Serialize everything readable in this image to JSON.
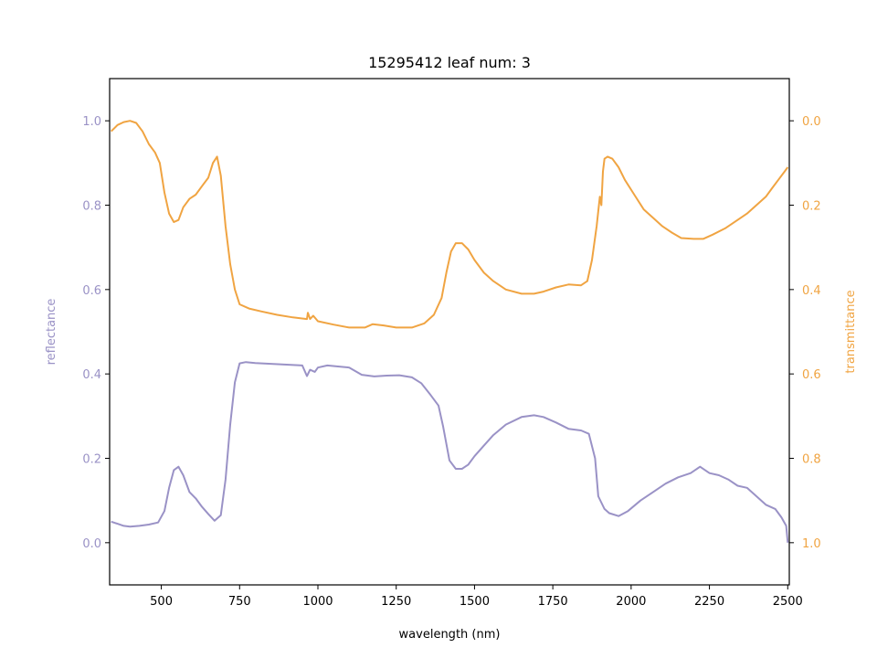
{
  "colors": {
    "reflectance": "#9a92c6",
    "transmittance": "#f0a442",
    "axis": "#000000"
  },
  "chart_data": {
    "type": "line",
    "title": "15295412 leaf num: 3",
    "xlabel": "wavelength (nm)",
    "ylabel_left": "reflectance",
    "ylabel_right": "transmittance",
    "xlim": [
      335,
      2505
    ],
    "ylim_left": [
      -0.1,
      1.1
    ],
    "ylim_right": [
      1.1,
      -0.1
    ],
    "grid": false,
    "x_ticks": [
      500,
      750,
      1000,
      1250,
      1500,
      1750,
      2000,
      2250,
      2500
    ],
    "y_left_ticks": [
      0.0,
      0.2,
      0.4,
      0.6,
      0.8,
      1.0
    ],
    "y_right_ticks": [
      0.0,
      0.2,
      0.4,
      0.6,
      0.8,
      1.0
    ],
    "series": [
      {
        "name": "reflectance",
        "axis": "left",
        "points": [
          [
            340,
            0.05
          ],
          [
            360,
            0.045
          ],
          [
            380,
            0.04
          ],
          [
            400,
            0.038
          ],
          [
            430,
            0.04
          ],
          [
            460,
            0.043
          ],
          [
            490,
            0.048
          ],
          [
            510,
            0.075
          ],
          [
            525,
            0.13
          ],
          [
            540,
            0.172
          ],
          [
            555,
            0.18
          ],
          [
            570,
            0.16
          ],
          [
            590,
            0.12
          ],
          [
            610,
            0.105
          ],
          [
            630,
            0.085
          ],
          [
            650,
            0.068
          ],
          [
            670,
            0.052
          ],
          [
            690,
            0.065
          ],
          [
            705,
            0.15
          ],
          [
            720,
            0.28
          ],
          [
            735,
            0.38
          ],
          [
            750,
            0.425
          ],
          [
            770,
            0.428
          ],
          [
            800,
            0.426
          ],
          [
            850,
            0.424
          ],
          [
            900,
            0.422
          ],
          [
            950,
            0.42
          ],
          [
            965,
            0.395
          ],
          [
            975,
            0.41
          ],
          [
            990,
            0.405
          ],
          [
            1000,
            0.415
          ],
          [
            1030,
            0.42
          ],
          [
            1060,
            0.418
          ],
          [
            1100,
            0.415
          ],
          [
            1140,
            0.398
          ],
          [
            1180,
            0.394
          ],
          [
            1220,
            0.396
          ],
          [
            1260,
            0.397
          ],
          [
            1300,
            0.392
          ],
          [
            1330,
            0.378
          ],
          [
            1360,
            0.35
          ],
          [
            1385,
            0.325
          ],
          [
            1400,
            0.275
          ],
          [
            1420,
            0.195
          ],
          [
            1440,
            0.175
          ],
          [
            1460,
            0.175
          ],
          [
            1480,
            0.185
          ],
          [
            1500,
            0.205
          ],
          [
            1530,
            0.23
          ],
          [
            1560,
            0.255
          ],
          [
            1600,
            0.28
          ],
          [
            1650,
            0.298
          ],
          [
            1690,
            0.302
          ],
          [
            1720,
            0.298
          ],
          [
            1760,
            0.285
          ],
          [
            1800,
            0.27
          ],
          [
            1840,
            0.266
          ],
          [
            1865,
            0.258
          ],
          [
            1885,
            0.2
          ],
          [
            1895,
            0.11
          ],
          [
            1905,
            0.095
          ],
          [
            1915,
            0.08
          ],
          [
            1930,
            0.07
          ],
          [
            1960,
            0.063
          ],
          [
            1990,
            0.075
          ],
          [
            2030,
            0.1
          ],
          [
            2070,
            0.12
          ],
          [
            2110,
            0.14
          ],
          [
            2150,
            0.155
          ],
          [
            2190,
            0.165
          ],
          [
            2220,
            0.18
          ],
          [
            2250,
            0.165
          ],
          [
            2280,
            0.16
          ],
          [
            2310,
            0.15
          ],
          [
            2340,
            0.135
          ],
          [
            2370,
            0.13
          ],
          [
            2400,
            0.11
          ],
          [
            2430,
            0.09
          ],
          [
            2460,
            0.08
          ],
          [
            2480,
            0.06
          ],
          [
            2495,
            0.04
          ],
          [
            2500,
            0.0
          ]
        ]
      },
      {
        "name": "transmittance",
        "axis": "right",
        "points": [
          [
            340,
            0.025
          ],
          [
            360,
            0.01
          ],
          [
            380,
            0.003
          ],
          [
            400,
            0.0
          ],
          [
            420,
            0.005
          ],
          [
            440,
            0.025
          ],
          [
            460,
            0.055
          ],
          [
            480,
            0.075
          ],
          [
            495,
            0.1
          ],
          [
            510,
            0.17
          ],
          [
            525,
            0.22
          ],
          [
            540,
            0.24
          ],
          [
            555,
            0.235
          ],
          [
            570,
            0.205
          ],
          [
            590,
            0.185
          ],
          [
            610,
            0.175
          ],
          [
            630,
            0.155
          ],
          [
            650,
            0.135
          ],
          [
            665,
            0.1
          ],
          [
            678,
            0.085
          ],
          [
            690,
            0.13
          ],
          [
            705,
            0.25
          ],
          [
            720,
            0.34
          ],
          [
            735,
            0.4
          ],
          [
            750,
            0.435
          ],
          [
            780,
            0.445
          ],
          [
            820,
            0.452
          ],
          [
            870,
            0.46
          ],
          [
            920,
            0.466
          ],
          [
            965,
            0.47
          ],
          [
            968,
            0.455
          ],
          [
            975,
            0.47
          ],
          [
            985,
            0.462
          ],
          [
            1000,
            0.475
          ],
          [
            1050,
            0.483
          ],
          [
            1100,
            0.49
          ],
          [
            1150,
            0.49
          ],
          [
            1175,
            0.482
          ],
          [
            1210,
            0.485
          ],
          [
            1250,
            0.49
          ],
          [
            1300,
            0.49
          ],
          [
            1340,
            0.48
          ],
          [
            1370,
            0.46
          ],
          [
            1395,
            0.42
          ],
          [
            1410,
            0.36
          ],
          [
            1425,
            0.31
          ],
          [
            1440,
            0.29
          ],
          [
            1460,
            0.29
          ],
          [
            1480,
            0.305
          ],
          [
            1500,
            0.33
          ],
          [
            1530,
            0.36
          ],
          [
            1560,
            0.38
          ],
          [
            1600,
            0.4
          ],
          [
            1650,
            0.41
          ],
          [
            1690,
            0.41
          ],
          [
            1720,
            0.405
          ],
          [
            1760,
            0.395
          ],
          [
            1800,
            0.388
          ],
          [
            1840,
            0.39
          ],
          [
            1860,
            0.38
          ],
          [
            1875,
            0.33
          ],
          [
            1890,
            0.25
          ],
          [
            1900,
            0.18
          ],
          [
            1905,
            0.2
          ],
          [
            1910,
            0.12
          ],
          [
            1915,
            0.09
          ],
          [
            1925,
            0.085
          ],
          [
            1940,
            0.09
          ],
          [
            1960,
            0.11
          ],
          [
            1980,
            0.14
          ],
          [
            2010,
            0.175
          ],
          [
            2040,
            0.21
          ],
          [
            2070,
            0.23
          ],
          [
            2100,
            0.25
          ],
          [
            2130,
            0.265
          ],
          [
            2160,
            0.278
          ],
          [
            2200,
            0.28
          ],
          [
            2230,
            0.28
          ],
          [
            2260,
            0.27
          ],
          [
            2300,
            0.255
          ],
          [
            2340,
            0.235
          ],
          [
            2370,
            0.22
          ],
          [
            2400,
            0.2
          ],
          [
            2430,
            0.18
          ],
          [
            2450,
            0.16
          ],
          [
            2470,
            0.14
          ],
          [
            2490,
            0.12
          ],
          [
            2500,
            0.11
          ]
        ]
      }
    ]
  }
}
